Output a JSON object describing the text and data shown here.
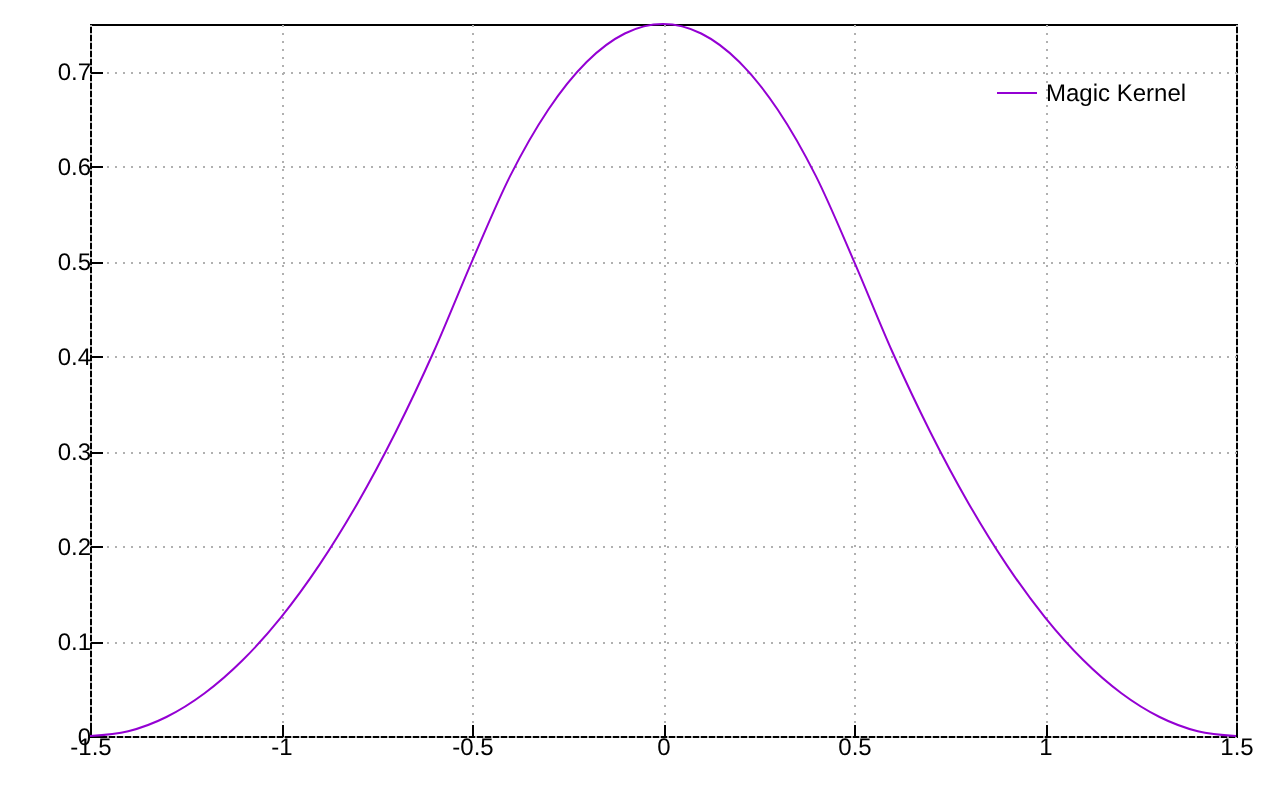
{
  "chart_data": {
    "type": "line",
    "x": [
      -1.5,
      -1.4,
      -1.3,
      -1.2,
      -1.1,
      -1.0,
      -0.9,
      -0.8,
      -0.7,
      -0.6,
      -0.5,
      -0.4,
      -0.3,
      -0.2,
      -0.1,
      0,
      0.1,
      0.2,
      0.3,
      0.4,
      0.5,
      0.6,
      0.7,
      0.8,
      0.9,
      1.0,
      1.1,
      1.2,
      1.3,
      1.4,
      1.5
    ],
    "series": [
      {
        "name": "Magic Kernel",
        "color": "#9400d3",
        "values": [
          0,
          0.005,
          0.02,
          0.045,
          0.08,
          0.125,
          0.18,
          0.245,
          0.32,
          0.405,
          0.5,
          0.59,
          0.66,
          0.71,
          0.74,
          0.75,
          0.74,
          0.71,
          0.66,
          0.59,
          0.5,
          0.405,
          0.32,
          0.245,
          0.18,
          0.125,
          0.08,
          0.045,
          0.02,
          0.005,
          0
        ]
      }
    ],
    "xlim": [
      -1.5,
      1.5
    ],
    "xticks": [
      -1.5,
      -1,
      -0.5,
      0,
      0.5,
      1,
      1.5
    ],
    "ylim": [
      0,
      0.75
    ],
    "yticks": [
      0,
      0.1,
      0.2,
      0.3,
      0.4,
      0.5,
      0.6,
      0.7
    ],
    "grid": true,
    "legend": "top right",
    "marker": "none",
    "line_style": "solid"
  }
}
